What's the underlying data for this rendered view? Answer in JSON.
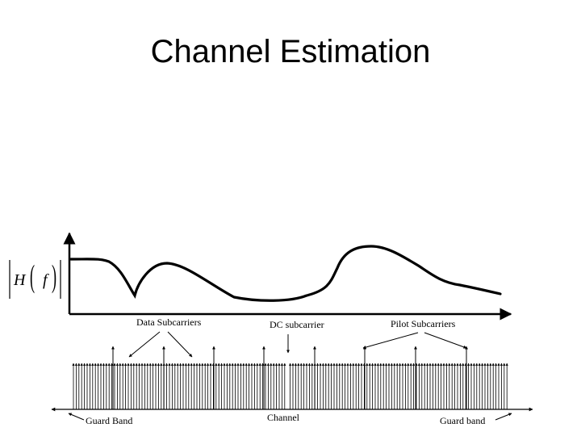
{
  "title": "Channel Estimation",
  "diagram": {
    "y_axis_label": {
      "H": "H",
      "open_paren": "(",
      "f": "f",
      "close_paren": ")"
    },
    "labels": {
      "data_subcarriers": "Data Subcarriers",
      "dc_subcarrier": "DC subcarrier",
      "pilot_subcarriers": "Pilot Subcarriers",
      "guard_band_left": "Guard Band",
      "channel": "Channel",
      "guard_band_right": "Guard band"
    }
  }
}
